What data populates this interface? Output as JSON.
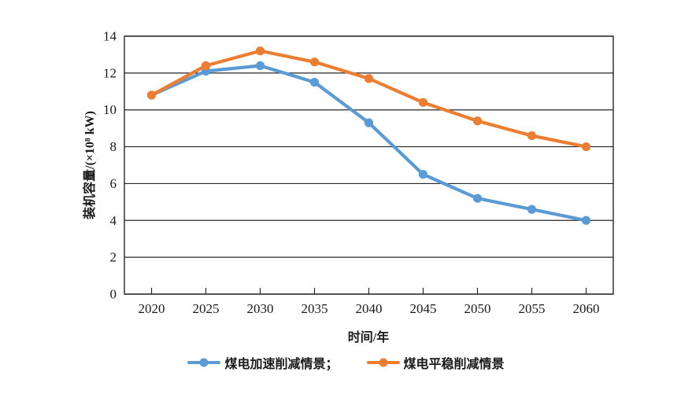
{
  "chart_data": {
    "type": "line",
    "title": "",
    "categories": [
      "2020",
      "2025",
      "2030",
      "2035",
      "2040",
      "2045",
      "2050",
      "2055",
      "2060"
    ],
    "series": [
      {
        "name": "煤电加速削减情景；",
        "color": "#5B9BD5",
        "values": [
          10.8,
          12.1,
          12.4,
          11.5,
          9.3,
          6.5,
          5.2,
          4.6,
          4.0
        ]
      },
      {
        "name": "煤电平稳削减情景",
        "color": "#ED7D31",
        "values": [
          10.8,
          12.4,
          13.2,
          12.6,
          11.7,
          10.4,
          9.4,
          8.6,
          8.0
        ]
      }
    ],
    "xlabel": "时间/年",
    "ylabel": "装机容量/(×10⁸ kW)",
    "ylim": [
      0,
      14
    ],
    "ytick_step": 2,
    "yticks": [
      "0",
      "2",
      "4",
      "6",
      "8",
      "10",
      "12",
      "14"
    ],
    "grid": "horizontal",
    "legend_position": "bottom-center",
    "axis_color": "#262626"
  }
}
